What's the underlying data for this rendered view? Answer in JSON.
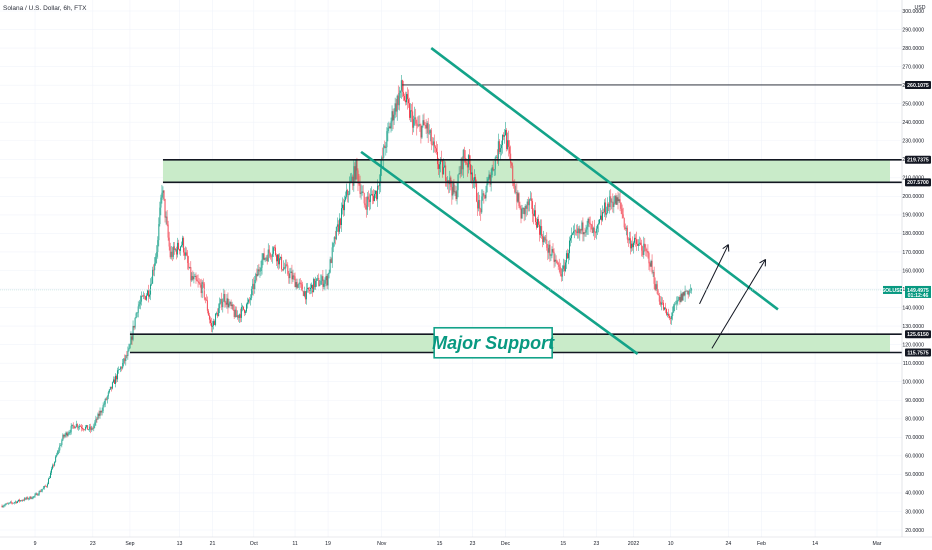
{
  "chart_data": {
    "type": "candlestick",
    "title": "Solana / U.S. Dollar, 6h, FTX",
    "currency": "USD",
    "symbol": "SOLUSD",
    "last_price": "149.4975",
    "last_price_time": "01:12:46",
    "ylim": [
      20,
      300
    ],
    "y_ticks": [
      20,
      30,
      40,
      50,
      60,
      70,
      80,
      90,
      100,
      110,
      120,
      130,
      140,
      150,
      160,
      170,
      180,
      190,
      200,
      210,
      220,
      230,
      240,
      250,
      260,
      270,
      280,
      290,
      300
    ],
    "y_tick_labels": [
      "20.0000",
      "30.0000",
      "40.0000",
      "50.0000",
      "60.0000",
      "70.0000",
      "80.0000",
      "90.0000",
      "100.0000",
      "110.0000",
      "120.0000",
      "130.0000",
      "140.0000",
      "150.0000",
      "160.0000",
      "170.0000",
      "180.0000",
      "190.0000",
      "200.0000",
      "210.0000",
      "220.0000",
      "230.0000",
      "240.0000",
      "250.0000",
      "260.0000",
      "270.0000",
      "280.0000",
      "290.0000",
      "300.0000"
    ],
    "x_ticks": [
      {
        "label": "9",
        "date": "2021-08-09"
      },
      {
        "label": "23",
        "date": "2021-08-23"
      },
      {
        "label": "Sep",
        "date": "2021-09-01"
      },
      {
        "label": "13",
        "date": "2021-09-13"
      },
      {
        "label": "21",
        "date": "2021-09-21"
      },
      {
        "label": "Oct",
        "date": "2021-10-01"
      },
      {
        "label": "11",
        "date": "2021-10-11"
      },
      {
        "label": "19",
        "date": "2021-10-19"
      },
      {
        "label": "Nov",
        "date": "2021-11-01"
      },
      {
        "label": "15",
        "date": "2021-11-15"
      },
      {
        "label": "23",
        "date": "2021-11-23"
      },
      {
        "label": "Dec",
        "date": "2021-12-01"
      },
      {
        "label": "15",
        "date": "2021-12-15"
      },
      {
        "label": "23",
        "date": "2021-12-23"
      },
      {
        "label": "2022",
        "date": "2022-01-01"
      },
      {
        "label": "10",
        "date": "2022-01-10"
      },
      {
        "label": "24",
        "date": "2022-01-24"
      },
      {
        "label": "Feb",
        "date": "2022-02-01"
      },
      {
        "label": "14",
        "date": "2022-02-14"
      },
      {
        "label": "Mar",
        "date": "2022-03-01"
      }
    ],
    "price_path": [
      {
        "date": "2021-08-01",
        "price": 33
      },
      {
        "date": "2021-08-09",
        "price": 38
      },
      {
        "date": "2021-08-12",
        "price": 44
      },
      {
        "date": "2021-08-16",
        "price": 70
      },
      {
        "date": "2021-08-19",
        "price": 77
      },
      {
        "date": "2021-08-23",
        "price": 74
      },
      {
        "date": "2021-08-26",
        "price": 88
      },
      {
        "date": "2021-08-29",
        "price": 103
      },
      {
        "date": "2021-09-01",
        "price": 116
      },
      {
        "date": "2021-09-03",
        "price": 140
      },
      {
        "date": "2021-09-06",
        "price": 150
      },
      {
        "date": "2021-09-08",
        "price": 175
      },
      {
        "date": "2021-09-09",
        "price": 205
      },
      {
        "date": "2021-09-11",
        "price": 168
      },
      {
        "date": "2021-09-14",
        "price": 175
      },
      {
        "date": "2021-09-16",
        "price": 156
      },
      {
        "date": "2021-09-19",
        "price": 150
      },
      {
        "date": "2021-09-21",
        "price": 129
      },
      {
        "date": "2021-09-24",
        "price": 146
      },
      {
        "date": "2021-09-27",
        "price": 135
      },
      {
        "date": "2021-09-30",
        "price": 142
      },
      {
        "date": "2021-10-03",
        "price": 165
      },
      {
        "date": "2021-10-06",
        "price": 172
      },
      {
        "date": "2021-10-08",
        "price": 163
      },
      {
        "date": "2021-10-11",
        "price": 155
      },
      {
        "date": "2021-10-14",
        "price": 147
      },
      {
        "date": "2021-10-16",
        "price": 153
      },
      {
        "date": "2021-10-19",
        "price": 155
      },
      {
        "date": "2021-10-21",
        "price": 178
      },
      {
        "date": "2021-10-24",
        "price": 202
      },
      {
        "date": "2021-10-26",
        "price": 215
      },
      {
        "date": "2021-10-28",
        "price": 196
      },
      {
        "date": "2021-10-31",
        "price": 202
      },
      {
        "date": "2021-11-02",
        "price": 227
      },
      {
        "date": "2021-11-04",
        "price": 245
      },
      {
        "date": "2021-11-06",
        "price": 258
      },
      {
        "date": "2021-11-08",
        "price": 245
      },
      {
        "date": "2021-11-10",
        "price": 236
      },
      {
        "date": "2021-11-12",
        "price": 238
      },
      {
        "date": "2021-11-15",
        "price": 217
      },
      {
        "date": "2021-11-17",
        "price": 212
      },
      {
        "date": "2021-11-19",
        "price": 200
      },
      {
        "date": "2021-11-21",
        "price": 222
      },
      {
        "date": "2021-11-23",
        "price": 215
      },
      {
        "date": "2021-11-25",
        "price": 192
      },
      {
        "date": "2021-11-27",
        "price": 207
      },
      {
        "date": "2021-11-29",
        "price": 222
      },
      {
        "date": "2021-12-01",
        "price": 236
      },
      {
        "date": "2021-12-03",
        "price": 210
      },
      {
        "date": "2021-12-05",
        "price": 190
      },
      {
        "date": "2021-12-07",
        "price": 196
      },
      {
        "date": "2021-12-09",
        "price": 186
      },
      {
        "date": "2021-12-11",
        "price": 174
      },
      {
        "date": "2021-12-13",
        "price": 166
      },
      {
        "date": "2021-12-15",
        "price": 158
      },
      {
        "date": "2021-12-17",
        "price": 176
      },
      {
        "date": "2021-12-19",
        "price": 180
      },
      {
        "date": "2021-12-21",
        "price": 186
      },
      {
        "date": "2021-12-23",
        "price": 178
      },
      {
        "date": "2021-12-25",
        "price": 192
      },
      {
        "date": "2021-12-27",
        "price": 198
      },
      {
        "date": "2021-12-29",
        "price": 196
      },
      {
        "date": "2021-12-31",
        "price": 176
      },
      {
        "date": "2022-01-03",
        "price": 173
      },
      {
        "date": "2022-01-05",
        "price": 167
      },
      {
        "date": "2022-01-07",
        "price": 148
      },
      {
        "date": "2022-01-09",
        "price": 137
      },
      {
        "date": "2022-01-10",
        "price": 134
      },
      {
        "date": "2022-01-12",
        "price": 143
      },
      {
        "date": "2022-01-14",
        "price": 149
      },
      {
        "date": "2022-01-15",
        "price": 149.5
      }
    ],
    "horizontal_levels": [
      {
        "label": "260.1075",
        "price": 260.1075,
        "start_date": "2021-11-06"
      },
      {
        "label": "219.7375",
        "price": 219.7375,
        "start_date": "2021-09-09"
      },
      {
        "label": "207.5700",
        "price": 207.57,
        "start_date": "2021-09-09"
      },
      {
        "label": "125.6150",
        "price": 125.615,
        "start_date": "2021-09-01"
      },
      {
        "label": "115.7575",
        "price": 115.7575,
        "start_date": "2021-09-01"
      }
    ],
    "zones": [
      {
        "from": 207.57,
        "to": 219.7375,
        "start_date": "2021-09-09"
      },
      {
        "from": 115.7575,
        "to": 125.615,
        "start_date": "2021-09-01"
      }
    ],
    "trend_channel": [
      {
        "from": {
          "date": "2021-11-13",
          "price": 280
        },
        "to": {
          "date": "2022-02-05",
          "price": 139
        }
      },
      {
        "from": {
          "date": "2021-10-27",
          "price": 224
        },
        "to": {
          "date": "2022-01-02",
          "price": 115
        }
      }
    ],
    "arrows": [
      {
        "from": {
          "date": "2022-01-17",
          "price": 142
        },
        "to": {
          "date": "2022-01-24",
          "price": 174
        }
      },
      {
        "from": {
          "date": "2022-01-20",
          "price": 118
        },
        "to": {
          "date": "2022-02-02",
          "price": 166
        }
      }
    ],
    "annotation": "Major Support",
    "annotation_anchor": {
      "date": "2021-11-28",
      "price": 121
    },
    "colors": {
      "up": "#089981",
      "down": "#f23645",
      "channel": "#13a389",
      "zone": "#c9ebc9",
      "level": "#131722",
      "grid": "#f0f3fa",
      "last_price": "#089981"
    }
  }
}
